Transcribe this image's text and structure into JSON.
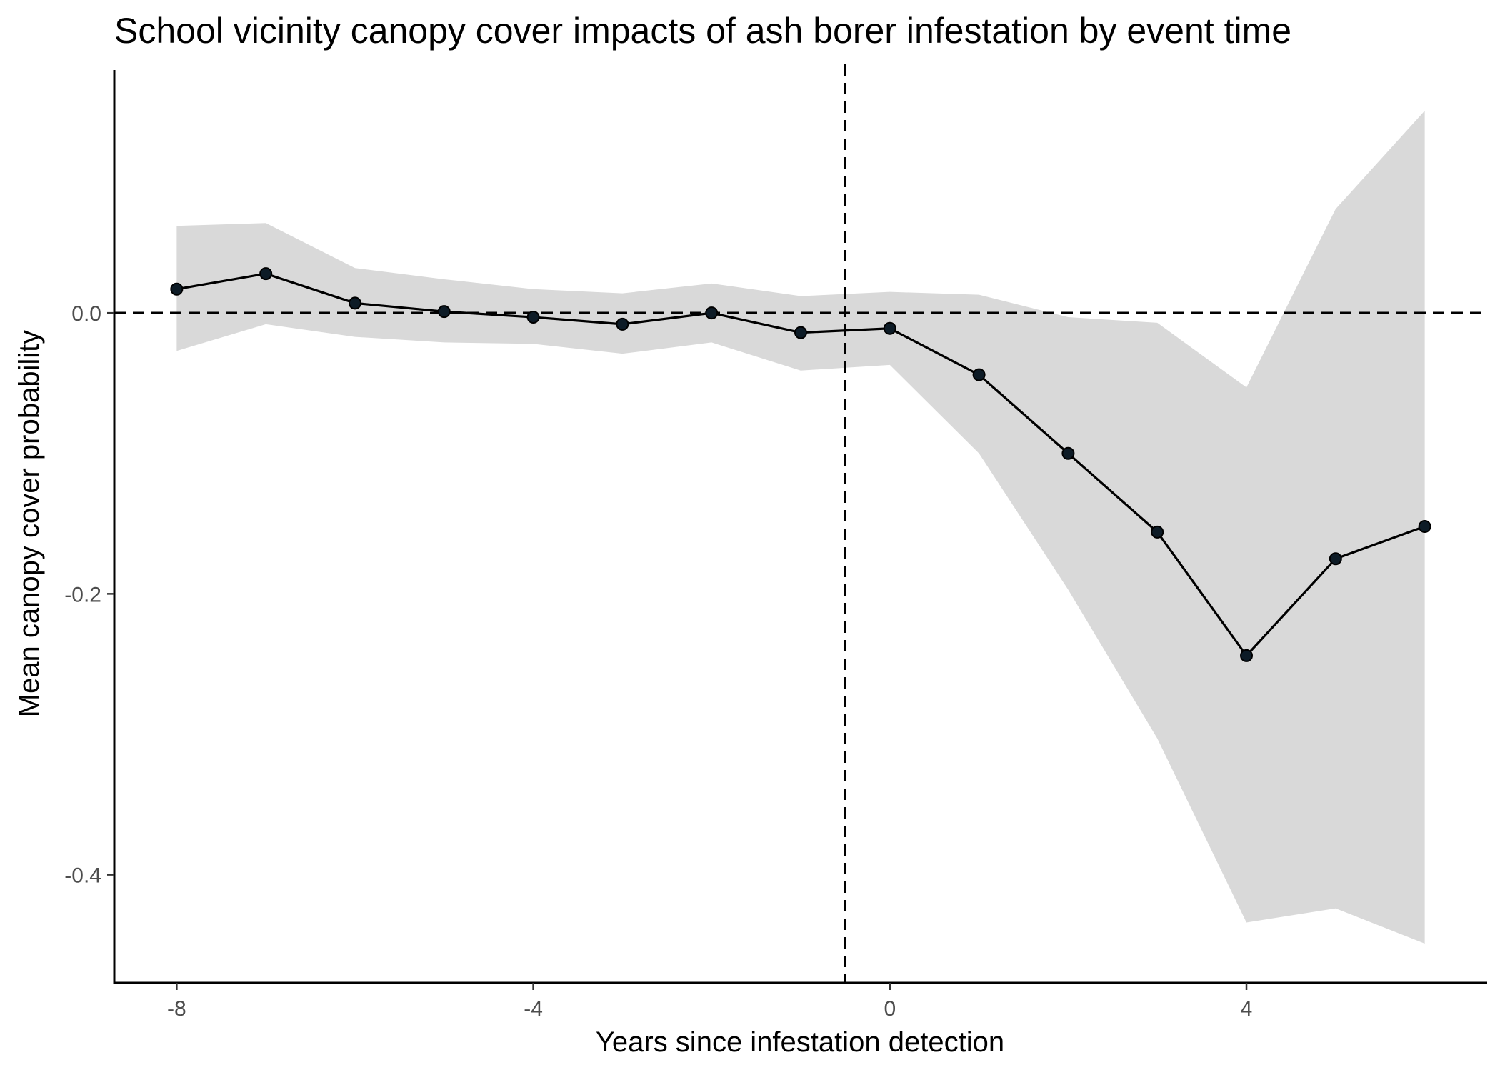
{
  "chart_data": {
    "type": "line",
    "title": "School vicinity canopy cover impacts of ash borer infestation by event time",
    "xlabel": "Years since infestation detection",
    "ylabel": "Mean canopy cover probability",
    "x_ticks": [
      -8,
      -4,
      0,
      4
    ],
    "x_tick_labels": [
      "-8",
      "-4",
      "0",
      "4"
    ],
    "y_ticks": [
      0.0,
      -0.2,
      -0.4
    ],
    "y_tick_labels": [
      "0.0",
      "-0.2",
      "-0.4"
    ],
    "xlim": [
      -8.7,
      6.7
    ],
    "ylim": [
      -0.477,
      0.173
    ],
    "grid": false,
    "reference_lines": {
      "horizontal_y": 0.0,
      "vertical_x": -0.5,
      "style": "dashed"
    },
    "series": [
      {
        "x": [
          -8,
          -7,
          -6,
          -5,
          -4,
          -3,
          -2,
          -1,
          0,
          1,
          2,
          3,
          4,
          5,
          6
        ],
        "values": [
          0.017,
          0.028,
          0.007,
          0.001,
          -0.003,
          -0.008,
          0.0,
          -0.014,
          -0.011,
          -0.044,
          -0.1,
          -0.156,
          -0.244,
          -0.175,
          -0.152
        ],
        "ci_lower": [
          -0.027,
          -0.008,
          -0.017,
          -0.021,
          -0.022,
          -0.029,
          -0.021,
          -0.041,
          -0.037,
          -0.1,
          -0.197,
          -0.303,
          -0.434,
          -0.424,
          -0.449
        ],
        "ci_upper": [
          0.062,
          0.064,
          0.032,
          0.024,
          0.017,
          0.014,
          0.021,
          0.012,
          0.015,
          0.013,
          -0.003,
          -0.007,
          -0.053,
          0.074,
          0.144
        ],
        "line_color": "#000000",
        "point_color": "#0d1b26",
        "ribbon_color": "#d9d9d9"
      }
    ]
  }
}
